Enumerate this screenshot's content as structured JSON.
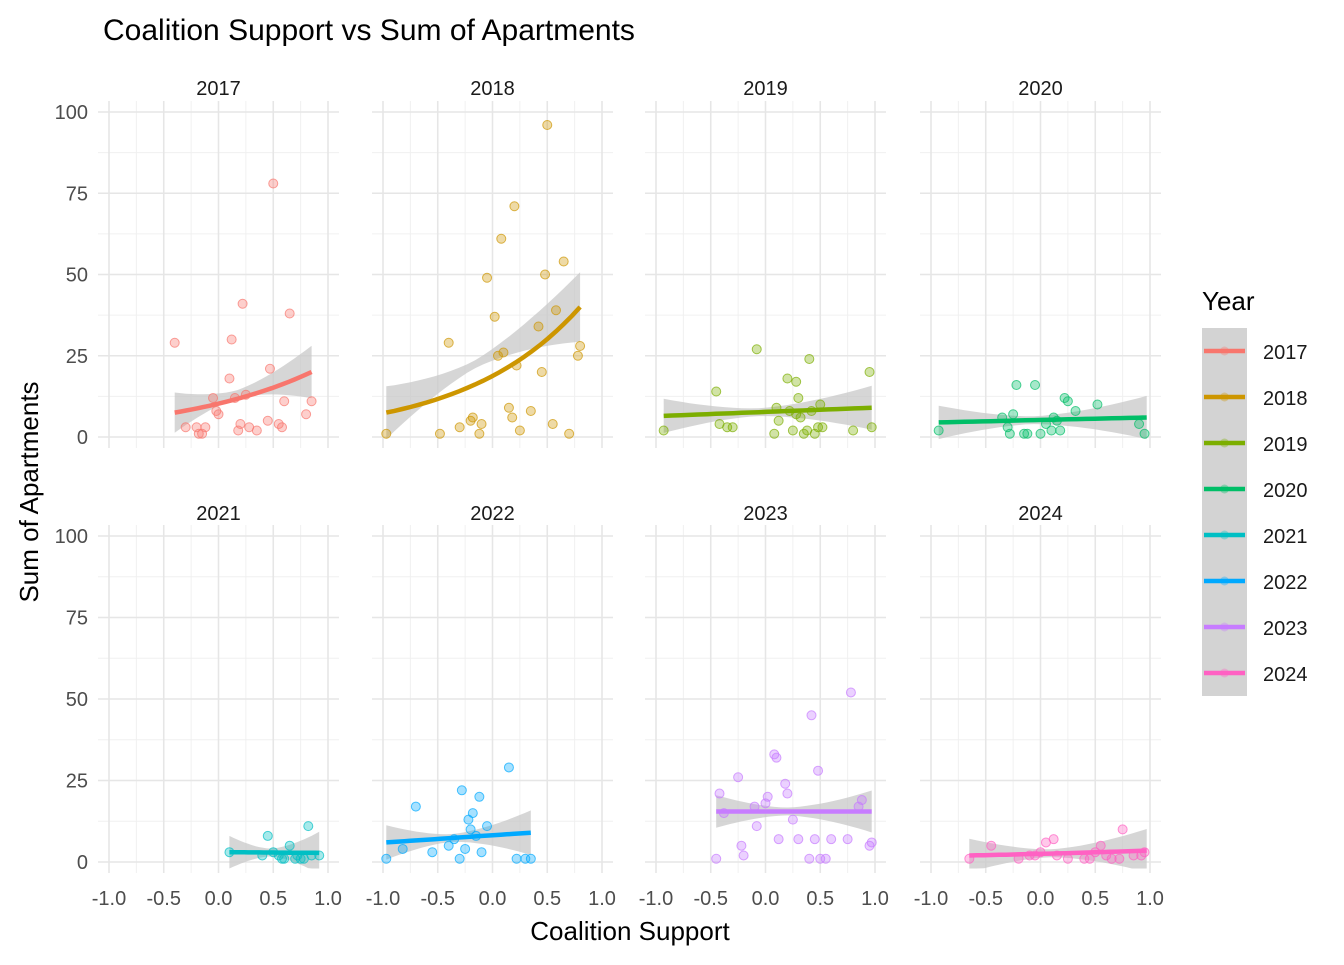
{
  "chart_data": {
    "type": "scatter",
    "title": "Coalition Support vs Sum of Apartments",
    "xlabel": "Coalition Support",
    "ylabel": "Sum of Apartments",
    "xlim": [
      -1.0,
      1.0
    ],
    "ylim": [
      0,
      100
    ],
    "x_ticks": [
      "-1.0",
      "-0.5",
      "0.0",
      "0.5",
      "1.0"
    ],
    "y_ticks": [
      "0",
      "25",
      "50",
      "75",
      "100"
    ],
    "grid": true,
    "legend": {
      "title": "Year",
      "placement": "right"
    },
    "panels": [
      {
        "year": "2017",
        "color": "#F8766D",
        "points": [
          [
            -0.4,
            29
          ],
          [
            -0.3,
            3
          ],
          [
            -0.2,
            3
          ],
          [
            -0.18,
            1
          ],
          [
            -0.15,
            1
          ],
          [
            -0.12,
            3
          ],
          [
            -0.05,
            12
          ],
          [
            -0.02,
            8
          ],
          [
            0.0,
            7
          ],
          [
            0.1,
            18
          ],
          [
            0.12,
            30
          ],
          [
            0.15,
            12
          ],
          [
            0.18,
            2
          ],
          [
            0.2,
            4
          ],
          [
            0.22,
            41
          ],
          [
            0.25,
            13
          ],
          [
            0.28,
            3
          ],
          [
            0.35,
            2
          ],
          [
            0.45,
            5
          ],
          [
            0.47,
            21
          ],
          [
            0.5,
            78
          ],
          [
            0.55,
            4
          ],
          [
            0.58,
            3
          ],
          [
            0.6,
            11
          ],
          [
            0.65,
            38
          ],
          [
            0.8,
            7
          ],
          [
            0.85,
            11
          ]
        ],
        "fit": {
          "x": [
            -0.4,
            0.85
          ],
          "y": [
            7.5,
            20
          ]
        }
      },
      {
        "year": "2018",
        "color": "#CD9600",
        "points": [
          [
            -0.97,
            1
          ],
          [
            -0.48,
            1
          ],
          [
            -0.4,
            29
          ],
          [
            -0.3,
            3
          ],
          [
            -0.2,
            5
          ],
          [
            -0.18,
            6
          ],
          [
            -0.12,
            1
          ],
          [
            -0.1,
            4
          ],
          [
            -0.05,
            49
          ],
          [
            0.02,
            37
          ],
          [
            0.05,
            25
          ],
          [
            0.08,
            61
          ],
          [
            0.1,
            26
          ],
          [
            0.15,
            9
          ],
          [
            0.18,
            6
          ],
          [
            0.2,
            71
          ],
          [
            0.22,
            22
          ],
          [
            0.25,
            2
          ],
          [
            0.35,
            8
          ],
          [
            0.42,
            34
          ],
          [
            0.45,
            20
          ],
          [
            0.48,
            50
          ],
          [
            0.5,
            96
          ],
          [
            0.55,
            4
          ],
          [
            0.58,
            39
          ],
          [
            0.65,
            54
          ],
          [
            0.7,
            1
          ],
          [
            0.78,
            25
          ],
          [
            0.8,
            28
          ]
        ],
        "fit": {
          "x": [
            -0.97,
            0.8
          ],
          "y": [
            7.5,
            40
          ]
        }
      },
      {
        "year": "2019",
        "color": "#7CAE00",
        "points": [
          [
            -0.93,
            2
          ],
          [
            -0.45,
            14
          ],
          [
            -0.42,
            4
          ],
          [
            -0.35,
            3
          ],
          [
            -0.3,
            3
          ],
          [
            -0.08,
            27
          ],
          [
            0.08,
            1
          ],
          [
            0.1,
            9
          ],
          [
            0.12,
            5
          ],
          [
            0.2,
            18
          ],
          [
            0.22,
            8
          ],
          [
            0.25,
            2
          ],
          [
            0.28,
            17
          ],
          [
            0.28,
            7
          ],
          [
            0.3,
            12
          ],
          [
            0.32,
            6
          ],
          [
            0.35,
            1
          ],
          [
            0.38,
            2
          ],
          [
            0.4,
            24
          ],
          [
            0.42,
            8
          ],
          [
            0.45,
            1
          ],
          [
            0.48,
            3
          ],
          [
            0.5,
            10
          ],
          [
            0.52,
            3
          ],
          [
            0.8,
            2
          ],
          [
            0.95,
            20
          ],
          [
            0.97,
            3
          ]
        ],
        "fit": {
          "x": [
            -0.93,
            0.97
          ],
          "y": [
            6.5,
            9
          ]
        }
      },
      {
        "year": "2020",
        "color": "#00BE67",
        "points": [
          [
            -0.93,
            2
          ],
          [
            -0.35,
            6
          ],
          [
            -0.3,
            3
          ],
          [
            -0.28,
            1
          ],
          [
            -0.25,
            7
          ],
          [
            -0.22,
            16
          ],
          [
            -0.15,
            1
          ],
          [
            -0.12,
            1
          ],
          [
            -0.05,
            16
          ],
          [
            0.0,
            1
          ],
          [
            0.05,
            4
          ],
          [
            0.1,
            2
          ],
          [
            0.12,
            6
          ],
          [
            0.15,
            5
          ],
          [
            0.18,
            2
          ],
          [
            0.22,
            12
          ],
          [
            0.25,
            11
          ],
          [
            0.32,
            8
          ],
          [
            0.52,
            10
          ],
          [
            0.9,
            4
          ],
          [
            0.95,
            1
          ]
        ],
        "fit": {
          "x": [
            -0.93,
            0.97
          ],
          "y": [
            4.5,
            6
          ]
        }
      },
      {
        "year": "2021",
        "color": "#00BFC4",
        "points": [
          [
            0.1,
            3
          ],
          [
            0.4,
            2
          ],
          [
            0.45,
            8
          ],
          [
            0.5,
            3
          ],
          [
            0.55,
            2
          ],
          [
            0.58,
            1
          ],
          [
            0.6,
            1
          ],
          [
            0.65,
            5
          ],
          [
            0.7,
            1
          ],
          [
            0.72,
            2
          ],
          [
            0.75,
            1
          ],
          [
            0.78,
            1
          ],
          [
            0.82,
            11
          ],
          [
            0.85,
            2
          ],
          [
            0.92,
            2
          ]
        ],
        "fit": {
          "x": [
            0.1,
            0.92
          ],
          "y": [
            3,
            2.8
          ]
        }
      },
      {
        "year": "2022",
        "color": "#00A9FF",
        "points": [
          [
            -0.97,
            1
          ],
          [
            -0.82,
            4
          ],
          [
            -0.7,
            17
          ],
          [
            -0.55,
            3
          ],
          [
            -0.4,
            5
          ],
          [
            -0.35,
            7
          ],
          [
            -0.3,
            1
          ],
          [
            -0.28,
            22
          ],
          [
            -0.25,
            4
          ],
          [
            -0.22,
            13
          ],
          [
            -0.2,
            10
          ],
          [
            -0.18,
            15
          ],
          [
            -0.15,
            8
          ],
          [
            -0.12,
            20
          ],
          [
            -0.1,
            3
          ],
          [
            -0.05,
            11
          ],
          [
            0.15,
            29
          ],
          [
            0.22,
            1
          ],
          [
            0.3,
            1
          ],
          [
            0.35,
            1
          ]
        ],
        "fit": {
          "x": [
            -0.97,
            0.35
          ],
          "y": [
            6,
            9
          ]
        }
      },
      {
        "year": "2023",
        "color": "#C77CFF",
        "points": [
          [
            -0.45,
            1
          ],
          [
            -0.42,
            21
          ],
          [
            -0.38,
            15
          ],
          [
            -0.25,
            26
          ],
          [
            -0.22,
            5
          ],
          [
            -0.2,
            2
          ],
          [
            -0.1,
            17
          ],
          [
            -0.08,
            11
          ],
          [
            0.0,
            18
          ],
          [
            0.02,
            20
          ],
          [
            0.08,
            33
          ],
          [
            0.1,
            32
          ],
          [
            0.12,
            7
          ],
          [
            0.18,
            24
          ],
          [
            0.2,
            21
          ],
          [
            0.25,
            13
          ],
          [
            0.3,
            7
          ],
          [
            0.4,
            1
          ],
          [
            0.42,
            45
          ],
          [
            0.45,
            7
          ],
          [
            0.48,
            28
          ],
          [
            0.5,
            1
          ],
          [
            0.55,
            1
          ],
          [
            0.6,
            7
          ],
          [
            0.75,
            7
          ],
          [
            0.78,
            52
          ],
          [
            0.85,
            17
          ],
          [
            0.88,
            19
          ],
          [
            0.95,
            5
          ],
          [
            0.97,
            6
          ]
        ],
        "fit": {
          "x": [
            -0.45,
            0.97
          ],
          "y": [
            15.5,
            15.5
          ]
        }
      },
      {
        "year": "2024",
        "color": "#FF61C3",
        "points": [
          [
            -0.65,
            1
          ],
          [
            -0.45,
            5
          ],
          [
            -0.2,
            1
          ],
          [
            -0.1,
            2
          ],
          [
            -0.05,
            2
          ],
          [
            0.0,
            3
          ],
          [
            0.05,
            6
          ],
          [
            0.12,
            7
          ],
          [
            0.15,
            2
          ],
          [
            0.25,
            1
          ],
          [
            0.4,
            1
          ],
          [
            0.45,
            1
          ],
          [
            0.5,
            3
          ],
          [
            0.55,
            5
          ],
          [
            0.6,
            2
          ],
          [
            0.65,
            1
          ],
          [
            0.72,
            1
          ],
          [
            0.75,
            10
          ],
          [
            0.85,
            2
          ],
          [
            0.92,
            2
          ],
          [
            0.95,
            3
          ]
        ],
        "fit": {
          "x": [
            -0.65,
            0.97
          ],
          "y": [
            2,
            3.5
          ]
        }
      }
    ]
  }
}
